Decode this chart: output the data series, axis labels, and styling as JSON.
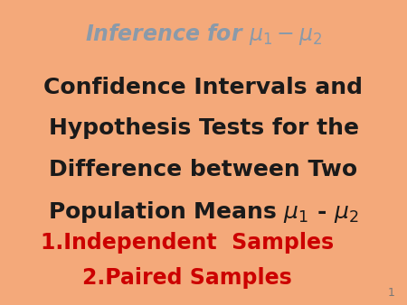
{
  "background_color": "#F4A97A",
  "title_text": "Inference for $\\mu_1 - \\mu_2$",
  "title_color": "#8a9aaa",
  "title_fontsize": 17,
  "body_lines": [
    "Confidence Intervals and",
    "Hypothesis Tests for the",
    "Difference between Two",
    "Population Means $\\mu_1$ - $\\mu_2$"
  ],
  "body_color": "#1a1a1a",
  "body_fontsize": 18,
  "list_lines": [
    "1.Independent  Samples",
    "2.Paired Samples"
  ],
  "list_color": "#cc0000",
  "list_fontsize": 17,
  "page_number": "1",
  "page_number_color": "#777777",
  "page_number_fontsize": 9
}
